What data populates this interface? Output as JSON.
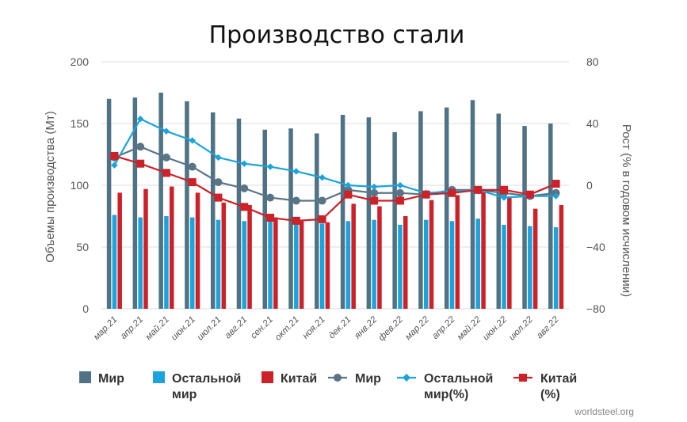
{
  "chart_data": {
    "type": "bar",
    "title": "Производство стали",
    "ylabel": "Объемы производства (Мт)",
    "y2label": "Рост (% в годовом исчислении)",
    "ylim": [
      0,
      200
    ],
    "y2lim": [
      -80,
      80
    ],
    "yticks": [
      "0",
      "50",
      "100",
      "150",
      "200"
    ],
    "y2ticks": [
      "−80",
      "−40",
      "0",
      "40",
      "80"
    ],
    "categories": [
      "мар.21",
      "апр.21",
      "май.21",
      "июн.21",
      "июл.21",
      "авг.21",
      "сен.21",
      "окт.21",
      "ноя.21",
      "дек.21",
      "янв.22",
      "фев.22",
      "мар.22",
      "апр.22",
      "май.22",
      "июн.22",
      "июл.22",
      "авг.22"
    ],
    "series": [
      {
        "name": "Мир",
        "kind": "bar",
        "axis": "left",
        "color": "#4f7384",
        "values": [
          170,
          171,
          175,
          168,
          159,
          154,
          145,
          146,
          142,
          157,
          155,
          143,
          160,
          163,
          169,
          158,
          148,
          150
        ]
      },
      {
        "name": "Остальной мир",
        "kind": "bar",
        "axis": "left",
        "color": "#1aa3dc",
        "values": [
          76,
          74,
          75,
          74,
          72,
          71,
          71,
          71,
          69,
          71,
          72,
          68,
          72,
          71,
          73,
          68,
          67,
          66
        ]
      },
      {
        "name": "Китай",
        "kind": "bar",
        "axis": "left",
        "color": "#cc2129",
        "values": [
          94,
          97,
          99,
          94,
          86,
          84,
          74,
          71,
          70,
          85,
          83,
          75,
          88,
          92,
          96,
          91,
          81,
          84
        ]
      },
      {
        "name": "Мир",
        "kind": "line",
        "axis": "right",
        "color": "#5a7485",
        "marker": "circle",
        "values": [
          18,
          25,
          18,
          12,
          2,
          -2,
          -8,
          -10,
          -10,
          -3,
          -5,
          -5,
          -6,
          -3,
          -3,
          -5,
          -7,
          -5
        ]
      },
      {
        "name": "Остальной мир(%)",
        "kind": "line",
        "axis": "right",
        "color": "#1aa3dc",
        "marker": "diamond",
        "values": [
          13,
          43,
          35,
          29,
          18,
          14,
          12,
          9,
          5,
          0,
          -1,
          0,
          -5,
          -4,
          -3,
          -8,
          -7,
          -7
        ]
      },
      {
        "name": "Китай (%)",
        "kind": "line",
        "axis": "right",
        "color": "#cc2129",
        "marker": "square",
        "values": [
          19,
          14,
          8,
          2,
          -8,
          -14,
          -21,
          -23,
          -22,
          -6,
          -10,
          -10,
          -6,
          -5,
          -3,
          -3,
          -6,
          1
        ]
      }
    ],
    "legend": [
      {
        "label": "Мир",
        "marker": "bar",
        "color": "#4f7384"
      },
      {
        "label": "Остальной мир",
        "marker": "bar",
        "color": "#1aa3dc"
      },
      {
        "label": "Китай",
        "marker": "bar",
        "color": "#cc2129"
      },
      {
        "label": "Мир",
        "marker": "circle-line",
        "color": "#5a7485"
      },
      {
        "label": "Остальной мир(%)",
        "marker": "diamond-line",
        "color": "#1aa3dc"
      },
      {
        "label": "Китай (%)",
        "marker": "square-line",
        "color": "#cc2129"
      }
    ],
    "legend_position": "bottom",
    "grid": true,
    "source": "worldsteel.org"
  }
}
